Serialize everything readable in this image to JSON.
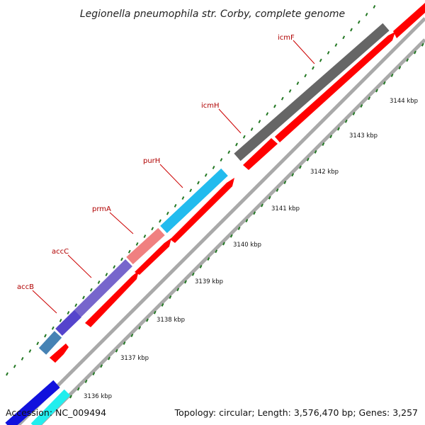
{
  "title": "Legionella pneumophila str. Corby, complete genome",
  "accession": "Accession: NC_009494",
  "topology": "Topology: circular; Length: 3,576,470 bp; Genes: 3,257",
  "colors": {
    "backbone": "#a9a9a9",
    "forward_arrow": "#ff0000",
    "tick": "#227722",
    "gene_label": "#b00000",
    "icmF": "#666666",
    "icmH": "#666666",
    "purH": "#22bbee",
    "prmA": "#f08080",
    "accC": "#7766cc",
    "accB": "#5544cc",
    "unlabeled_1": "#4682b4",
    "unlabeled_2": "#1111dd",
    "unlabeled_3": "#22eeee"
  },
  "tick_labels": [
    "3136 kbp",
    "3137 kbp",
    "3138 kbp",
    "3139 kbp",
    "3140 kbp",
    "3141 kbp",
    "3142 kbp",
    "3143 kbp",
    "3144 kbp"
  ],
  "gene_labels": [
    "icmF",
    "icmH",
    "purH",
    "prmA",
    "accC",
    "accB"
  ]
}
